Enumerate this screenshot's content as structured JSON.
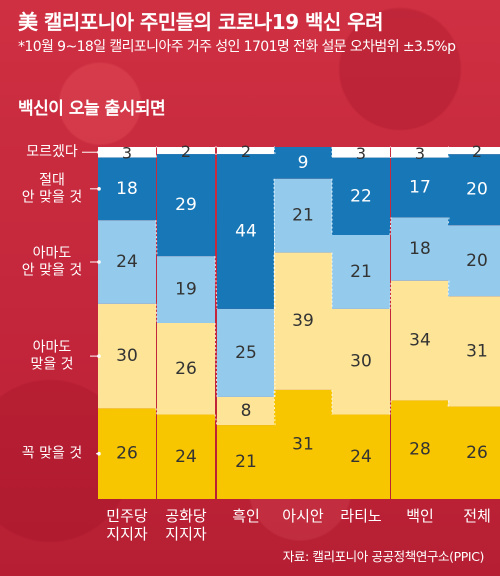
{
  "header": {
    "title": "美 캘리포니아 주민들의 코로나19 백신 우려",
    "subtitle": "*10월 9~18일 캘리포니아주 거주 성인 1701명 전화 설문 오차범위 ±3.5%p",
    "section_label": "백신이 오늘 출시되면"
  },
  "footer": {
    "source": "자료: 캘리포니아 공공정책연구소(PPIC)"
  },
  "colors": {
    "background": "#c8283a",
    "모르겠다": "#ffffff",
    "절대 안 맞을 것": "#1777b7",
    "아마도 안 맞을 것": "#94cbec",
    "아마도 맞을 것": "#fde497",
    "꼭 맞을 것": "#f8c600"
  },
  "chart_data": {
    "type": "bar",
    "stacked": true,
    "categories": [
      "민주당 지지자",
      "공화당 지지자",
      "흑인",
      "아시안",
      "라티노",
      "백인",
      "전체"
    ],
    "category_lines": [
      [
        "민주당",
        "지지자"
      ],
      [
        "공화당",
        "지지자"
      ],
      [
        "흑인"
      ],
      [
        "아시안"
      ],
      [
        "라티노"
      ],
      [
        "백인"
      ],
      [
        "전체"
      ]
    ],
    "series": [
      {
        "name": "꼭 맞을 것",
        "label_lines": [
          "꼭 맞을 것"
        ],
        "values": [
          26,
          24,
          21,
          31,
          24,
          28,
          26
        ]
      },
      {
        "name": "아마도 맞을 것",
        "label_lines": [
          "아마도",
          "맞을 것"
        ],
        "values": [
          30,
          26,
          8,
          39,
          30,
          34,
          31
        ]
      },
      {
        "name": "아마도 안 맞을 것",
        "label_lines": [
          "아마도",
          "안 맞을 것"
        ],
        "values": [
          24,
          19,
          25,
          21,
          21,
          18,
          20
        ]
      },
      {
        "name": "절대 안 맞을 것",
        "label_lines": [
          "절대",
          "안 맞을 것"
        ],
        "values": [
          18,
          29,
          44,
          9,
          22,
          17,
          20
        ]
      },
      {
        "name": "모르겠다",
        "label_lines": [
          "모르겠다"
        ],
        "values": [
          3,
          2,
          2,
          0,
          3,
          3,
          2
        ]
      }
    ],
    "value_labels": [
      [
        "26",
        "30",
        "24",
        "18",
        "3"
      ],
      [
        "24",
        "26",
        "19",
        "29",
        "2"
      ],
      [
        "21",
        "8",
        "25",
        "44",
        "2"
      ],
      [
        "31",
        "39",
        "21",
        "9",
        ""
      ],
      [
        "24",
        "30",
        "21",
        "22",
        "3"
      ],
      [
        "28",
        "34",
        "18",
        "17",
        "3"
      ],
      [
        "26",
        "31",
        "20",
        "20",
        "2"
      ]
    ],
    "unit": "%"
  }
}
